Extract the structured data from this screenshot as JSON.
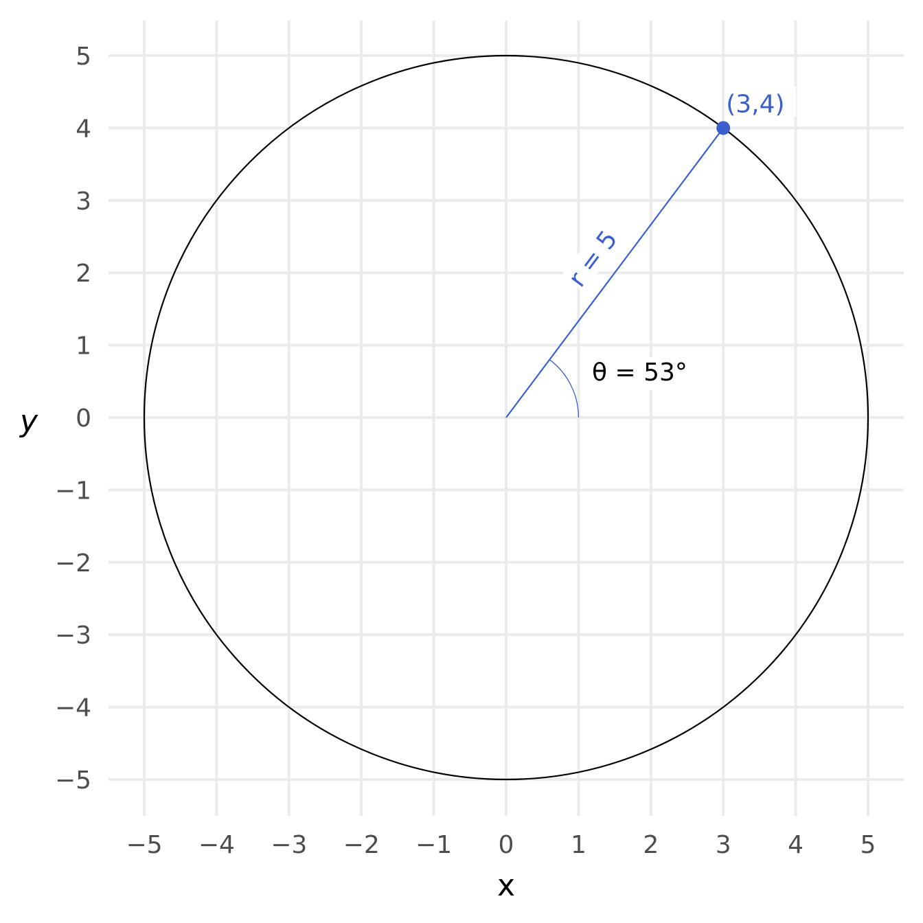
{
  "chart_data": {
    "type": "scatter",
    "title": "",
    "xlabel": "x",
    "ylabel": "y",
    "xlim": [
      -5,
      5
    ],
    "ylim": [
      -5,
      5
    ],
    "x_ticks": [
      -5,
      -4,
      -3,
      -2,
      -1,
      0,
      1,
      2,
      3,
      4,
      5
    ],
    "y_ticks": [
      -5,
      -4,
      -3,
      -2,
      -1,
      0,
      1,
      2,
      3,
      4,
      5
    ],
    "x_tick_labels": [
      "−5",
      "−4",
      "−3",
      "−2",
      "−1",
      "0",
      "1",
      "2",
      "3",
      "4",
      "5"
    ],
    "y_tick_labels": [
      "−5",
      "−4",
      "−3",
      "−2",
      "−1",
      "0",
      "1",
      "2",
      "3",
      "4",
      "5"
    ],
    "grid": true,
    "circle": {
      "center": [
        0,
        0
      ],
      "radius": 5
    },
    "point": {
      "x": 3,
      "y": 4,
      "label": "(3,4)"
    },
    "radius_segment": {
      "from": [
        0,
        0
      ],
      "to": [
        3,
        4
      ],
      "label": "r = 5"
    },
    "angle": {
      "degrees": 53,
      "arc_radius": 1,
      "label": "θ = 53°"
    },
    "colors": {
      "accent": "#3a5fcd",
      "circle": "#000000",
      "grid": "#ebebeb",
      "tick_text": "#4d4d4d"
    }
  }
}
